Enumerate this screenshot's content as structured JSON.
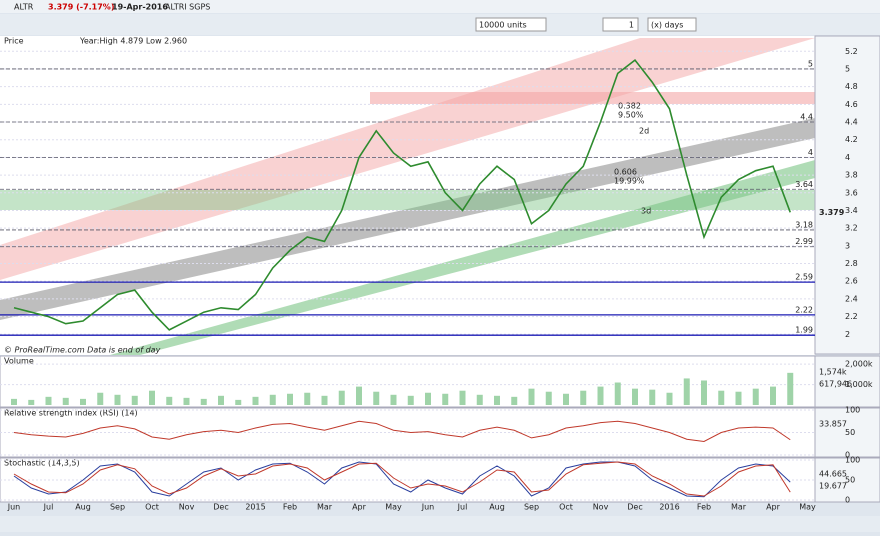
{
  "toolbar": {
    "symbol": "ALTR",
    "change": "3.379 (-7.17%)",
    "date": "19-Apr-2016",
    "name": "ALTRI SGPS",
    "units": "10000 units",
    "period_value": "1",
    "period_unit": "(x) days"
  },
  "chart_data": [
    {
      "type": "line",
      "title": "Price",
      "subtitle": "Year:High 4.879 Low 2.960",
      "footnote": "© ProRealTime.com  Data is end of day",
      "color": "#2e8b2e",
      "categories": [
        "Jun",
        null,
        "Jul",
        null,
        "Aug",
        null,
        "Sep",
        null,
        "Oct",
        null,
        "Nov",
        null,
        "Dec",
        null,
        "2015",
        null,
        "Feb",
        null,
        "Mar",
        null,
        "Apr",
        null,
        "May",
        null,
        "Jun",
        null,
        "Jul",
        null,
        "Aug",
        null,
        "Sep",
        null,
        "Oct",
        null,
        "Nov",
        null,
        "Dec",
        null,
        "2016",
        null,
        "Feb",
        null,
        "Mar",
        null,
        "Apr",
        null,
        "May"
      ],
      "values": [
        2.3,
        2.25,
        2.2,
        2.12,
        2.15,
        2.3,
        2.45,
        2.5,
        2.25,
        2.05,
        2.15,
        2.25,
        2.3,
        2.28,
        2.45,
        2.75,
        2.95,
        3.1,
        3.05,
        3.4,
        4.0,
        4.3,
        4.05,
        3.9,
        3.95,
        3.6,
        3.4,
        3.7,
        3.9,
        3.75,
        3.25,
        3.4,
        3.7,
        3.9,
        4.4,
        4.95,
        5.1,
        4.85,
        4.55,
        3.8,
        3.1,
        3.55,
        3.75,
        3.85,
        3.9,
        3.379,
        null
      ],
      "ylim": [
        1.8,
        5.35
      ],
      "yticks": [
        2,
        2.2,
        2.4,
        2.6,
        2.8,
        3,
        3.2,
        3.4,
        3.6,
        3.8,
        4,
        4.2,
        4.4,
        4.6,
        4.8,
        5,
        5.2
      ],
      "levels": [
        5,
        4.4,
        4,
        3.64,
        3.18,
        2.99,
        2.59,
        2.22,
        1.99
      ],
      "last": "3.379",
      "annotations": [
        "0.382",
        "9.50%",
        "0.606",
        "19.99%",
        "2d",
        "3d"
      ]
    },
    {
      "type": "bar",
      "title": "Volume",
      "color": "#9fd3a8",
      "ylim": [
        0,
        2300000
      ],
      "yticks": [
        {
          "value": 1000000,
          "label": "1,000k"
        },
        {
          "value": 2000000,
          "label": "2,000k"
        }
      ],
      "readouts": [
        "1,574k",
        "617,946"
      ],
      "values": [
        300000,
        250000,
        400000,
        350000,
        300000,
        600000,
        500000,
        450000,
        700000,
        400000,
        350000,
        300000,
        450000,
        250000,
        400000,
        500000,
        550000,
        600000,
        450000,
        700000,
        900000,
        650000,
        500000,
        450000,
        600000,
        550000,
        700000,
        500000,
        450000,
        400000,
        800000,
        650000,
        550000,
        700000,
        900000,
        1100000,
        800000,
        750000,
        600000,
        1300000,
        1200000,
        700000,
        650000,
        800000,
        900000,
        1574000
      ]
    },
    {
      "type": "line",
      "title": "Relative strength index (RSI) (14)",
      "color": "#c0392b",
      "ylim": [
        0,
        100
      ],
      "yticks": [
        0,
        50,
        100
      ],
      "readouts": [
        "33.857"
      ],
      "values": [
        50,
        45,
        42,
        40,
        48,
        60,
        65,
        58,
        40,
        35,
        45,
        52,
        55,
        50,
        60,
        68,
        70,
        62,
        55,
        65,
        75,
        70,
        55,
        50,
        52,
        45,
        40,
        55,
        62,
        55,
        38,
        45,
        60,
        65,
        72,
        75,
        70,
        60,
        50,
        35,
        30,
        50,
        60,
        62,
        60,
        33.857
      ]
    },
    {
      "type": "line",
      "title": "Stochastic (14,3,5)",
      "ylim": [
        0,
        100
      ],
      "yticks": [
        0,
        50,
        100
      ],
      "readouts": [
        "44.665",
        "19.677"
      ],
      "series": [
        {
          "color": "#2a3f9e",
          "values": [
            60,
            30,
            15,
            20,
            50,
            85,
            90,
            70,
            20,
            10,
            40,
            70,
            80,
            50,
            75,
            90,
            92,
            70,
            40,
            80,
            95,
            90,
            40,
            20,
            50,
            30,
            15,
            60,
            85,
            60,
            10,
            30,
            80,
            90,
            95,
            95,
            85,
            50,
            30,
            10,
            8,
            50,
            80,
            90,
            85,
            44.665
          ]
        },
        {
          "color": "#c0392b",
          "values": [
            65,
            40,
            20,
            18,
            40,
            75,
            88,
            78,
            35,
            15,
            30,
            60,
            78,
            60,
            65,
            85,
            90,
            80,
            50,
            70,
            90,
            92,
            55,
            30,
            40,
            35,
            20,
            45,
            75,
            70,
            20,
            25,
            65,
            88,
            92,
            95,
            90,
            60,
            40,
            15,
            10,
            35,
            70,
            85,
            88,
            19.677
          ]
        }
      ]
    }
  ]
}
